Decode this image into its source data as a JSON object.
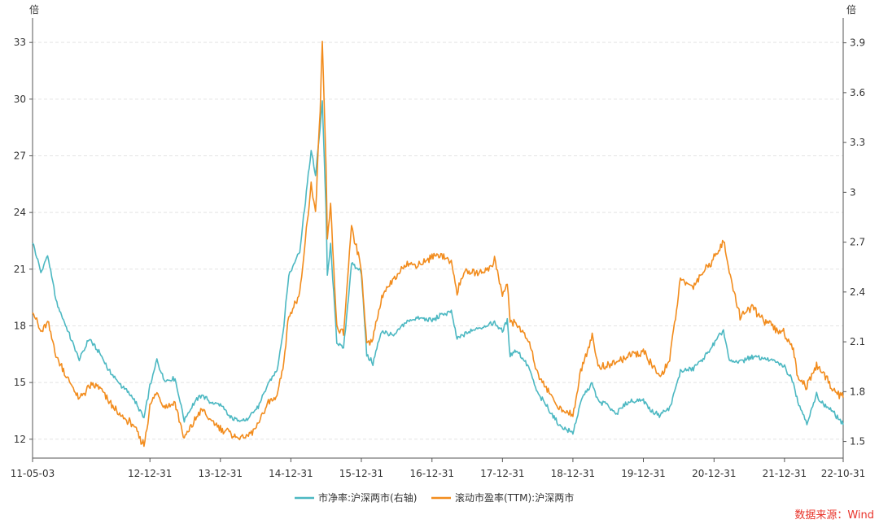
{
  "chart_data": {
    "type": "line",
    "left_axis": {
      "unit": "倍",
      "ticks": [
        12,
        15,
        18,
        21,
        24,
        27,
        30,
        33
      ],
      "range": [
        11,
        34.3
      ]
    },
    "right_axis": {
      "unit": "倍",
      "ticks": [
        1.5,
        1.8,
        2.1,
        2.4,
        2.7,
        3.0,
        3.3,
        3.6,
        3.9
      ],
      "tick_labels": [
        "1.5",
        "1.8",
        "2.1",
        "2.4",
        "2.7",
        "3",
        "3.3",
        "3.6",
        "3.9"
      ],
      "range": [
        1.4,
        4.05
      ]
    },
    "x_axis": {
      "range": [
        "2011-05-03",
        "2022-10-31"
      ],
      "ticks": [
        {
          "date": "2011-05-03",
          "label": "11-05-03"
        },
        {
          "date": "2012-12-31",
          "label": "12-12-31"
        },
        {
          "date": "2013-12-31",
          "label": "13-12-31"
        },
        {
          "date": "2014-12-31",
          "label": "14-12-31"
        },
        {
          "date": "2015-12-31",
          "label": "15-12-31"
        },
        {
          "date": "2016-12-31",
          "label": "16-12-31"
        },
        {
          "date": "2017-12-31",
          "label": "17-12-31"
        },
        {
          "date": "2018-12-31",
          "label": "18-12-31"
        },
        {
          "date": "2019-12-31",
          "label": "19-12-31"
        },
        {
          "date": "2020-12-31",
          "label": "20-12-31"
        },
        {
          "date": "2021-12-31",
          "label": "21-12-31"
        },
        {
          "date": "2022-10-31",
          "label": "22-10-31"
        }
      ]
    },
    "grid": true,
    "legend_position": "bottom",
    "series": [
      {
        "name": "市净率:沪深两市(右轴)",
        "axis": "right",
        "color": "#4cb8c2",
        "points": [
          [
            "2011-05-03",
            2.7
          ],
          [
            "2011-06-15",
            2.52
          ],
          [
            "2011-07-20",
            2.62
          ],
          [
            "2011-09-01",
            2.35
          ],
          [
            "2011-10-20",
            2.2
          ],
          [
            "2011-12-31",
            1.99
          ],
          [
            "2012-02-20",
            2.12
          ],
          [
            "2012-04-10",
            2.04
          ],
          [
            "2012-06-01",
            1.93
          ],
          [
            "2012-08-01",
            1.84
          ],
          [
            "2012-10-01",
            1.77
          ],
          [
            "2012-11-30",
            1.64
          ],
          [
            "2012-12-31",
            1.83
          ],
          [
            "2013-02-05",
            1.99
          ],
          [
            "2013-03-15",
            1.87
          ],
          [
            "2013-05-10",
            1.88
          ],
          [
            "2013-06-27",
            1.63
          ],
          [
            "2013-08-15",
            1.73
          ],
          [
            "2013-09-25",
            1.78
          ],
          [
            "2013-11-15",
            1.73
          ],
          [
            "2013-12-31",
            1.72
          ],
          [
            "2014-02-15",
            1.65
          ],
          [
            "2014-03-20",
            1.63
          ],
          [
            "2014-05-20",
            1.63
          ],
          [
            "2014-07-15",
            1.71
          ],
          [
            "2014-09-01",
            1.84
          ],
          [
            "2014-10-20",
            1.93
          ],
          [
            "2014-11-20",
            2.15
          ],
          [
            "2014-12-20",
            2.5
          ],
          [
            "2015-02-15",
            2.65
          ],
          [
            "2015-04-15",
            3.25
          ],
          [
            "2015-05-08",
            3.1
          ],
          [
            "2015-06-01",
            3.4
          ],
          [
            "2015-06-12",
            3.55
          ],
          [
            "2015-07-01",
            2.9
          ],
          [
            "2015-07-08",
            2.5
          ],
          [
            "2015-07-25",
            2.68
          ],
          [
            "2015-08-26",
            2.1
          ],
          [
            "2015-09-30",
            2.06
          ],
          [
            "2015-11-10",
            2.57
          ],
          [
            "2015-12-31",
            2.52
          ],
          [
            "2016-01-28",
            2.02
          ],
          [
            "2016-02-29",
            1.97
          ],
          [
            "2016-04-15",
            2.17
          ],
          [
            "2016-06-15",
            2.13
          ],
          [
            "2016-08-15",
            2.22
          ],
          [
            "2016-10-15",
            2.24
          ],
          [
            "2016-12-31",
            2.23
          ],
          [
            "2017-02-15",
            2.26
          ],
          [
            "2017-04-10",
            2.28
          ],
          [
            "2017-05-10",
            2.12
          ],
          [
            "2017-06-15",
            2.14
          ],
          [
            "2017-08-15",
            2.18
          ],
          [
            "2017-10-15",
            2.2
          ],
          [
            "2017-11-20",
            2.22
          ],
          [
            "2017-12-31",
            2.16
          ],
          [
            "2018-01-25",
            2.23
          ],
          [
            "2018-02-09",
            2.02
          ],
          [
            "2018-03-15",
            2.05
          ],
          [
            "2018-05-15",
            1.95
          ],
          [
            "2018-06-30",
            1.79
          ],
          [
            "2018-08-15",
            1.72
          ],
          [
            "2018-10-20",
            1.6
          ],
          [
            "2018-12-31",
            1.55
          ],
          [
            "2019-02-15",
            1.76
          ],
          [
            "2019-04-10",
            1.85
          ],
          [
            "2019-05-10",
            1.74
          ],
          [
            "2019-06-15",
            1.73
          ],
          [
            "2019-08-15",
            1.67
          ],
          [
            "2019-10-15",
            1.74
          ],
          [
            "2019-12-31",
            1.75
          ],
          [
            "2020-02-10",
            1.68
          ],
          [
            "2020-03-23",
            1.66
          ],
          [
            "2020-05-15",
            1.7
          ],
          [
            "2020-07-10",
            1.92
          ],
          [
            "2020-09-15",
            1.94
          ],
          [
            "2020-11-15",
            2.01
          ],
          [
            "2020-12-31",
            2.09
          ],
          [
            "2021-02-18",
            2.17
          ],
          [
            "2021-03-20",
            1.98
          ],
          [
            "2021-05-15",
            1.98
          ],
          [
            "2021-07-15",
            2.01
          ],
          [
            "2021-09-15",
            2.0
          ],
          [
            "2021-11-15",
            1.98
          ],
          [
            "2021-12-31",
            1.95
          ],
          [
            "2022-02-15",
            1.86
          ],
          [
            "2022-03-10",
            1.74
          ],
          [
            "2022-04-26",
            1.61
          ],
          [
            "2022-06-15",
            1.78
          ],
          [
            "2022-07-15",
            1.73
          ],
          [
            "2022-08-31",
            1.69
          ],
          [
            "2022-10-31",
            1.6
          ]
        ]
      },
      {
        "name": "滚动市盈率(TTM):沪深两市",
        "axis": "left",
        "color": "#f28c1d",
        "points": [
          [
            "2011-05-03",
            18.9
          ],
          [
            "2011-06-15",
            17.6
          ],
          [
            "2011-07-20",
            18.2
          ],
          [
            "2011-09-01",
            16.5
          ],
          [
            "2011-10-20",
            15.4
          ],
          [
            "2011-12-31",
            14.1
          ],
          [
            "2012-02-20",
            14.8
          ],
          [
            "2012-04-10",
            14.8
          ],
          [
            "2012-06-01",
            14.0
          ],
          [
            "2012-08-01",
            13.2
          ],
          [
            "2012-10-01",
            12.8
          ],
          [
            "2012-11-30",
            11.7
          ],
          [
            "2012-12-31",
            13.7
          ],
          [
            "2013-02-05",
            14.5
          ],
          [
            "2013-03-15",
            13.7
          ],
          [
            "2013-05-10",
            13.9
          ],
          [
            "2013-06-27",
            12.0
          ],
          [
            "2013-08-15",
            12.9
          ],
          [
            "2013-09-25",
            13.6
          ],
          [
            "2013-11-15",
            12.9
          ],
          [
            "2013-12-31",
            12.6
          ],
          [
            "2014-02-15",
            12.4
          ],
          [
            "2014-03-20",
            12.1
          ],
          [
            "2014-05-20",
            12.1
          ],
          [
            "2014-07-15",
            12.8
          ],
          [
            "2014-09-01",
            13.9
          ],
          [
            "2014-10-20",
            14.3
          ],
          [
            "2014-11-20",
            15.8
          ],
          [
            "2014-12-20",
            18.5
          ],
          [
            "2015-02-15",
            19.6
          ],
          [
            "2015-04-15",
            25.5
          ],
          [
            "2015-05-08",
            24.0
          ],
          [
            "2015-06-01",
            29.5
          ],
          [
            "2015-06-12",
            33.0
          ],
          [
            "2015-07-01",
            26.5
          ],
          [
            "2015-07-08",
            22.5
          ],
          [
            "2015-07-25",
            24.3
          ],
          [
            "2015-08-26",
            17.9
          ],
          [
            "2015-09-30",
            17.6
          ],
          [
            "2015-11-10",
            23.3
          ],
          [
            "2015-12-31",
            21.0
          ],
          [
            "2016-01-28",
            17.0
          ],
          [
            "2016-02-29",
            17.4
          ],
          [
            "2016-04-15",
            19.5
          ],
          [
            "2016-06-15",
            20.4
          ],
          [
            "2016-08-15",
            21.3
          ],
          [
            "2016-10-15",
            21.2
          ],
          [
            "2016-12-31",
            21.6
          ],
          [
            "2017-02-15",
            21.8
          ],
          [
            "2017-04-10",
            21.4
          ],
          [
            "2017-05-10",
            19.8
          ],
          [
            "2017-06-15",
            20.9
          ],
          [
            "2017-08-15",
            20.8
          ],
          [
            "2017-10-15",
            21.0
          ],
          [
            "2017-11-20",
            21.5
          ],
          [
            "2017-12-31",
            19.6
          ],
          [
            "2018-01-25",
            20.2
          ],
          [
            "2018-02-09",
            18.3
          ],
          [
            "2018-03-15",
            18.1
          ],
          [
            "2018-05-15",
            17.2
          ],
          [
            "2018-06-30",
            15.5
          ],
          [
            "2018-08-15",
            14.8
          ],
          [
            "2018-10-20",
            13.6
          ],
          [
            "2018-12-31",
            13.3
          ],
          [
            "2019-02-15",
            15.8
          ],
          [
            "2019-04-10",
            17.5
          ],
          [
            "2019-05-10",
            15.9
          ],
          [
            "2019-06-15",
            15.8
          ],
          [
            "2019-08-15",
            16.1
          ],
          [
            "2019-10-15",
            16.4
          ],
          [
            "2019-12-31",
            16.6
          ],
          [
            "2020-02-10",
            16.0
          ],
          [
            "2020-03-23",
            15.3
          ],
          [
            "2020-05-15",
            16.2
          ],
          [
            "2020-07-10",
            20.4
          ],
          [
            "2020-09-15",
            20.1
          ],
          [
            "2020-11-15",
            21.0
          ],
          [
            "2020-12-31",
            21.6
          ],
          [
            "2021-02-18",
            22.5
          ],
          [
            "2021-03-20",
            20.8
          ],
          [
            "2021-05-15",
            18.5
          ],
          [
            "2021-07-15",
            19.0
          ],
          [
            "2021-09-15",
            18.3
          ],
          [
            "2021-11-15",
            17.8
          ],
          [
            "2021-12-31",
            17.6
          ],
          [
            "2022-02-15",
            16.8
          ],
          [
            "2022-03-10",
            15.3
          ],
          [
            "2022-04-26",
            14.8
          ],
          [
            "2022-06-15",
            15.9
          ],
          [
            "2022-07-15",
            15.6
          ],
          [
            "2022-08-31",
            14.7
          ],
          [
            "2022-10-31",
            14.2
          ]
        ]
      }
    ]
  },
  "source_text": "数据来源：Wind"
}
